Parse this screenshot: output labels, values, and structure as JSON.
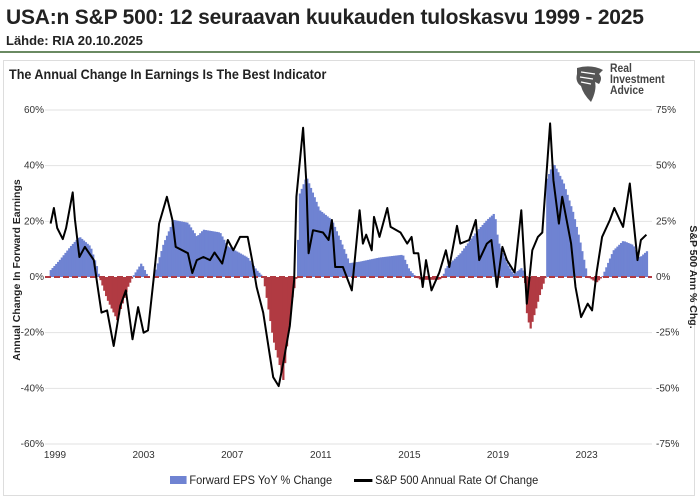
{
  "header": {
    "title": "USA:n S&P 500: 12 seuraavan kuukauden tuloskasvu 1999 - 2025",
    "source": "Lähde: RIA 20.10.2025"
  },
  "logo": {
    "line1": "Real",
    "line2": "Investment",
    "line3": "Advice"
  },
  "chart_data": {
    "type": "area+line",
    "title": "The Annual Change In Earnings Is The Best Indicator",
    "ylabel_left": "Annual Change In Forward Earnings",
    "ylabel_right": "S&P 500  Ann % Chg.",
    "ylim_left": [
      -60,
      60
    ],
    "ylim_right": [
      -75,
      75
    ],
    "xlim": [
      1998.8,
      2025.8
    ],
    "left_ticks": [
      "60%",
      "40%",
      "20%",
      "0%",
      "-20%",
      "-40%",
      "-60%"
    ],
    "left_tick_values": [
      60,
      40,
      20,
      0,
      -20,
      -40,
      -60
    ],
    "right_ticks": [
      "75%",
      "50%",
      "25%",
      "0%",
      "-25%",
      "-50%",
      "-75%"
    ],
    "right_tick_values": [
      75,
      50,
      25,
      0,
      -25,
      -50,
      -75
    ],
    "x_ticks": [
      "1999",
      "2003",
      "2007",
      "2011",
      "2015",
      "2019",
      "2023"
    ],
    "x_tick_values": [
      1999,
      2003,
      2007,
      2011,
      2015,
      2019,
      2023
    ],
    "grid": true,
    "legend_position": "bottom",
    "colors": {
      "positive": "#6f83d2",
      "negative": "#b13a42",
      "line": "#000000",
      "zero_line": "#b13a42"
    },
    "series": [
      {
        "name": "Forward EPS YoY % Change",
        "axis": "left",
        "points": [
          [
            1998.8,
            2.5
          ],
          [
            1999.2,
            6
          ],
          [
            1999.7,
            11
          ],
          [
            2000.1,
            14.5
          ],
          [
            2000.6,
            11
          ],
          [
            2000.9,
            3.5
          ],
          [
            2001.0,
            0
          ],
          [
            2001.35,
            -8
          ],
          [
            2001.8,
            -15.5
          ],
          [
            2002.3,
            -3.5
          ],
          [
            2002.5,
            0
          ],
          [
            2002.9,
            5
          ],
          [
            2003.2,
            0
          ],
          [
            2003.45,
            0
          ],
          [
            2003.9,
            12
          ],
          [
            2004.35,
            20.5
          ],
          [
            2005.0,
            19.5
          ],
          [
            2005.4,
            14.5
          ],
          [
            2005.7,
            17
          ],
          [
            2006.45,
            16
          ],
          [
            2006.8,
            11
          ],
          [
            2007.7,
            7
          ],
          [
            2008.1,
            2.5
          ],
          [
            2008.4,
            0
          ],
          [
            2008.85,
            -22.5
          ],
          [
            2009.3,
            -37
          ],
          [
            2009.7,
            -8
          ],
          [
            2009.9,
            0
          ],
          [
            2010.05,
            30
          ],
          [
            2010.35,
            36
          ],
          [
            2010.95,
            24
          ],
          [
            2011.5,
            20.5
          ],
          [
            2011.9,
            13
          ],
          [
            2012.3,
            5
          ],
          [
            2012.75,
            5.5
          ],
          [
            2013.65,
            7
          ],
          [
            2014.7,
            8
          ],
          [
            2015.0,
            2.5
          ],
          [
            2015.3,
            0
          ],
          [
            2015.5,
            -1
          ],
          [
            2016.35,
            -1
          ],
          [
            2016.5,
            0
          ],
          [
            2016.65,
            3.5
          ],
          [
            2017.3,
            8.5
          ],
          [
            2018.0,
            16
          ],
          [
            2018.5,
            20.5
          ],
          [
            2018.85,
            23
          ],
          [
            2019.0,
            13
          ],
          [
            2019.4,
            5
          ],
          [
            2019.7,
            1
          ],
          [
            2020.1,
            3.5
          ],
          [
            2020.2,
            0
          ],
          [
            2020.3,
            -13
          ],
          [
            2020.45,
            -19
          ],
          [
            2020.9,
            -6
          ],
          [
            2021.15,
            0
          ],
          [
            2021.2,
            35
          ],
          [
            2021.5,
            41
          ],
          [
            2021.95,
            34
          ],
          [
            2022.4,
            23
          ],
          [
            2022.7,
            13
          ],
          [
            2023.05,
            0
          ],
          [
            2023.45,
            -2
          ],
          [
            2023.7,
            0
          ],
          [
            2024.2,
            9.5
          ],
          [
            2024.65,
            13
          ],
          [
            2025.1,
            11.5
          ],
          [
            2025.4,
            7
          ],
          [
            2025.75,
            9.5
          ]
        ]
      },
      {
        "name": "S&P 500 Annual Rate Of Change",
        "axis": "right",
        "points": [
          [
            1998.8,
            24
          ],
          [
            1998.95,
            31
          ],
          [
            1999.1,
            22
          ],
          [
            1999.35,
            17
          ],
          [
            1999.5,
            22
          ],
          [
            1999.8,
            38
          ],
          [
            1999.9,
            26
          ],
          [
            2000.1,
            9
          ],
          [
            2000.35,
            13.5
          ],
          [
            2000.75,
            7.6
          ],
          [
            2000.95,
            -6
          ],
          [
            2001.1,
            -16
          ],
          [
            2001.35,
            -15
          ],
          [
            2001.65,
            -31
          ],
          [
            2001.95,
            -13
          ],
          [
            2002.2,
            -6
          ],
          [
            2002.5,
            -28
          ],
          [
            2002.75,
            -13.5
          ],
          [
            2003.0,
            -25
          ],
          [
            2003.2,
            -24
          ],
          [
            2003.45,
            -1
          ],
          [
            2003.6,
            13.5
          ],
          [
            2003.7,
            24
          ],
          [
            2004.05,
            36
          ],
          [
            2004.3,
            25.6
          ],
          [
            2004.45,
            13.5
          ],
          [
            2005.0,
            10.7
          ],
          [
            2005.2,
            1.8
          ],
          [
            2005.4,
            7.6
          ],
          [
            2005.7,
            9
          ],
          [
            2006.0,
            7.6
          ],
          [
            2006.2,
            11
          ],
          [
            2006.55,
            6
          ],
          [
            2006.8,
            16.6
          ],
          [
            2007.05,
            12
          ],
          [
            2007.35,
            18
          ],
          [
            2007.7,
            18
          ],
          [
            2007.9,
            7.6
          ],
          [
            2008.1,
            -4.5
          ],
          [
            2008.4,
            -16
          ],
          [
            2008.85,
            -45
          ],
          [
            2009.1,
            -49
          ],
          [
            2009.3,
            -39
          ],
          [
            2009.6,
            -22
          ],
          [
            2009.8,
            -1
          ],
          [
            2009.9,
            36
          ],
          [
            2010.2,
            67
          ],
          [
            2010.35,
            42
          ],
          [
            2010.45,
            10.7
          ],
          [
            2010.65,
            21
          ],
          [
            2011.1,
            20
          ],
          [
            2011.35,
            16.6
          ],
          [
            2011.5,
            25.6
          ],
          [
            2011.65,
            4.5
          ],
          [
            2012.0,
            4.5
          ],
          [
            2012.4,
            -6
          ],
          [
            2012.75,
            30
          ],
          [
            2012.9,
            15
          ],
          [
            2013.05,
            19
          ],
          [
            2013.3,
            12
          ],
          [
            2013.4,
            27
          ],
          [
            2013.65,
            18
          ],
          [
            2014.0,
            31
          ],
          [
            2014.15,
            22.5
          ],
          [
            2014.6,
            20
          ],
          [
            2014.9,
            15
          ],
          [
            2015.1,
            18
          ],
          [
            2015.2,
            10.7
          ],
          [
            2015.4,
            10.7
          ],
          [
            2015.6,
            -4.5
          ],
          [
            2015.75,
            7.6
          ],
          [
            2016.0,
            -6
          ],
          [
            2016.35,
            2
          ],
          [
            2016.65,
            12
          ],
          [
            2016.8,
            4.5
          ],
          [
            2017.15,
            23
          ],
          [
            2017.3,
            15
          ],
          [
            2017.7,
            16.6
          ],
          [
            2018.0,
            25.6
          ],
          [
            2018.15,
            7.6
          ],
          [
            2018.5,
            15
          ],
          [
            2018.7,
            16.6
          ],
          [
            2018.95,
            -4.5
          ],
          [
            2019.2,
            13.5
          ],
          [
            2019.4,
            7.6
          ],
          [
            2019.75,
            2
          ],
          [
            2020.05,
            30
          ],
          [
            2020.3,
            -12
          ],
          [
            2020.55,
            12
          ],
          [
            2020.8,
            18
          ],
          [
            2021.0,
            20
          ],
          [
            2021.35,
            69
          ],
          [
            2021.5,
            43.5
          ],
          [
            2021.75,
            24
          ],
          [
            2021.9,
            36
          ],
          [
            2022.3,
            15
          ],
          [
            2022.5,
            -4.5
          ],
          [
            2022.75,
            -18
          ],
          [
            2023.05,
            -12
          ],
          [
            2023.25,
            -15
          ],
          [
            2023.45,
            2
          ],
          [
            2023.7,
            18
          ],
          [
            2024.05,
            25.6
          ],
          [
            2024.25,
            31
          ],
          [
            2024.5,
            25.6
          ],
          [
            2024.65,
            22.5
          ],
          [
            2024.95,
            42
          ],
          [
            2025.1,
            27
          ],
          [
            2025.3,
            7.6
          ],
          [
            2025.45,
            16.6
          ],
          [
            2025.7,
            19
          ]
        ]
      }
    ]
  }
}
